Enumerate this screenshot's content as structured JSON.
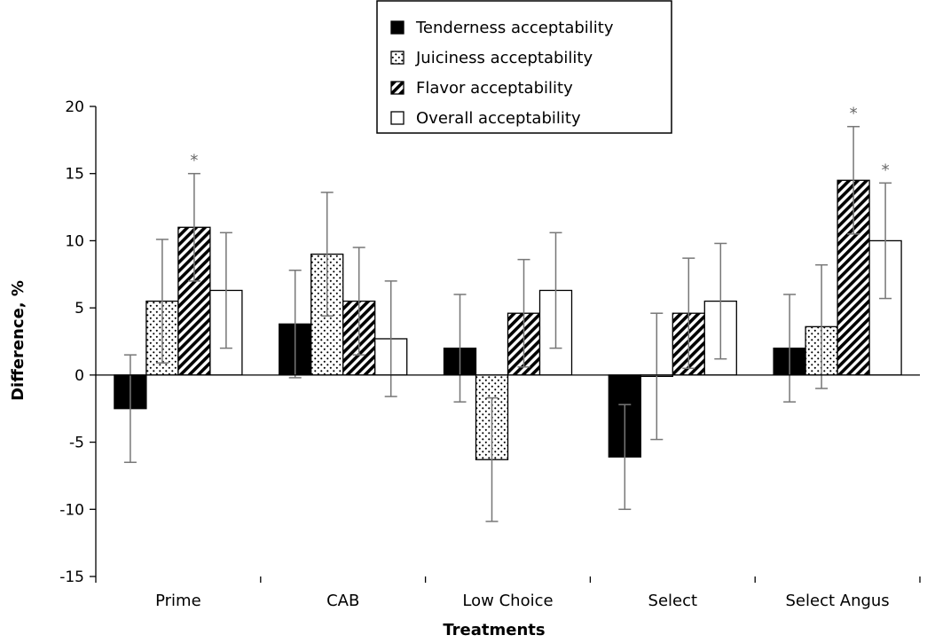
{
  "chart_data": {
    "type": "bar",
    "xlabel": "Treatments",
    "ylabel": "Difference, %",
    "ylim": [
      -15,
      20
    ],
    "yticks": [
      -15,
      -10,
      -5,
      0,
      5,
      10,
      15,
      20
    ],
    "grid": false,
    "legend_position": "top-center",
    "categories": [
      "Prime",
      "CAB",
      "Low Choice",
      "Select",
      "Select Angus"
    ],
    "series": [
      {
        "name": "Tenderness acceptability",
        "pattern": "solid",
        "values": [
          -2.5,
          3.8,
          2.0,
          -6.1,
          2.0
        ],
        "errors": [
          4.0,
          4.0,
          4.0,
          3.9,
          4.0
        ],
        "significant": [
          false,
          false,
          false,
          false,
          false
        ]
      },
      {
        "name": "Juiciness acceptability",
        "pattern": "dots",
        "values": [
          5.5,
          9.0,
          -6.3,
          -0.1,
          3.6
        ],
        "errors": [
          4.6,
          4.6,
          4.6,
          4.7,
          4.6
        ],
        "significant": [
          false,
          false,
          false,
          false,
          false
        ]
      },
      {
        "name": "Flavor acceptability",
        "pattern": "diagonal",
        "values": [
          11.0,
          5.5,
          4.6,
          4.6,
          14.5
        ],
        "errors": [
          4.0,
          4.0,
          4.0,
          4.1,
          4.0
        ],
        "significant": [
          true,
          false,
          false,
          false,
          true
        ]
      },
      {
        "name": "Overall acceptability",
        "pattern": "white",
        "values": [
          6.3,
          2.7,
          6.3,
          5.5,
          10.0
        ],
        "errors": [
          4.3,
          4.3,
          4.3,
          4.3,
          4.3
        ],
        "significant": [
          false,
          false,
          false,
          false,
          true
        ]
      }
    ],
    "significance_marker": "*"
  }
}
